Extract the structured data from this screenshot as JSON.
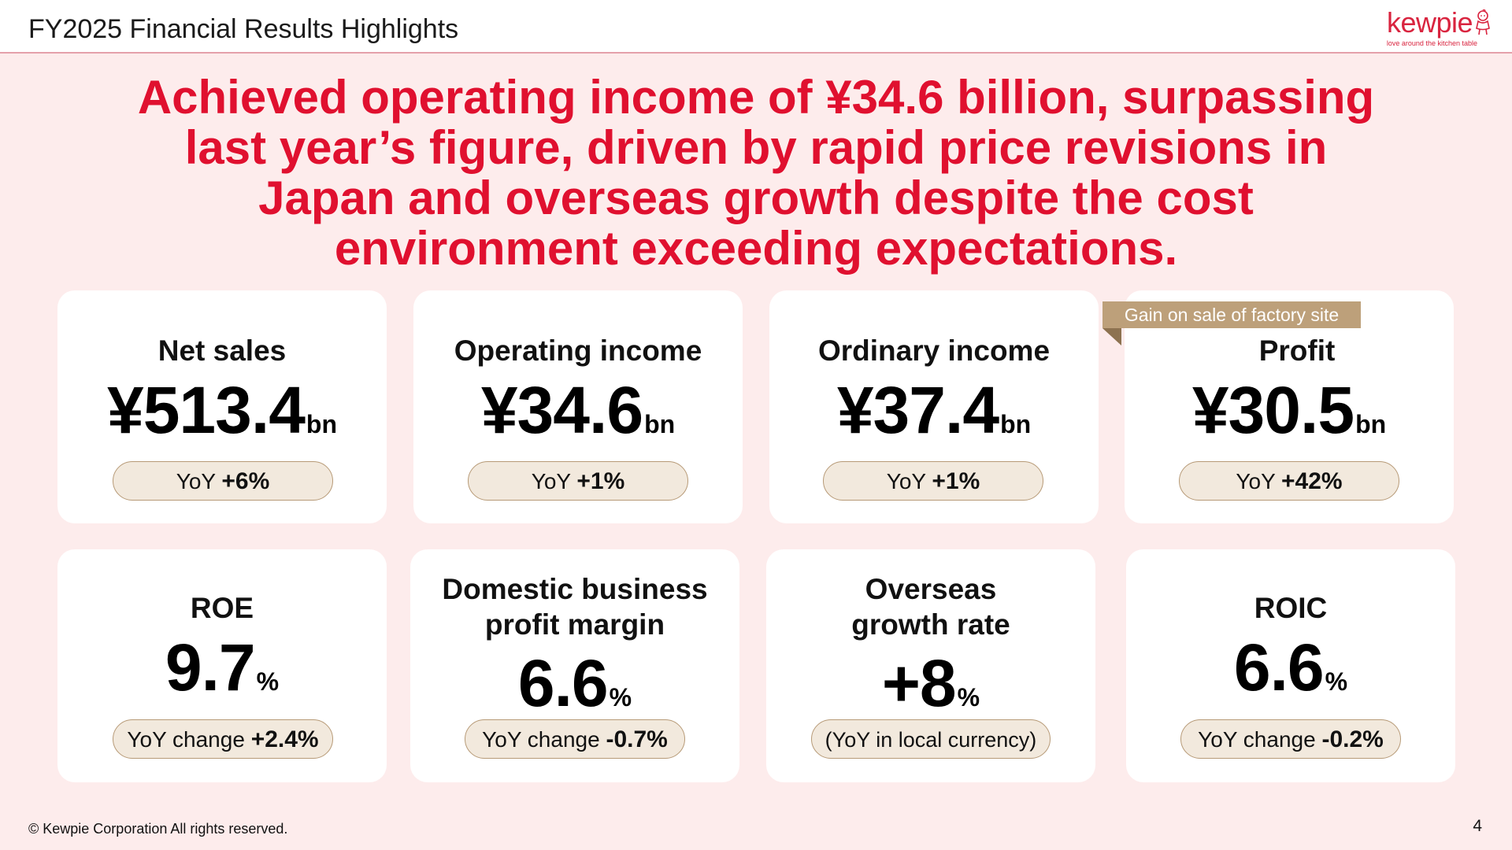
{
  "header": {
    "title": "FY2025 Financial Results Highlights",
    "logo": {
      "wordmark": "kewpie",
      "tagline": "love around the kitchen table"
    }
  },
  "headline": {
    "lines": [
      "Achieved operating income of ¥34.6 billion, surpassing",
      "last year’s figure, driven by rapid price revisions in",
      "Japan and overseas growth despite the cost",
      "environment exceeding expectations."
    ]
  },
  "top_cards": [
    {
      "title": "Net sales",
      "value": "¥513.4",
      "unit": "bn",
      "pill_label": "YoY",
      "pill_value": "+6%"
    },
    {
      "title": "Operating income",
      "value": "¥34.6",
      "unit": "bn",
      "pill_label": "YoY",
      "pill_value": "+1%"
    },
    {
      "title": "Ordinary income",
      "value": "¥37.4",
      "unit": "bn",
      "pill_label": "YoY",
      "pill_value": "+1%"
    },
    {
      "title": "Profit",
      "value": "¥30.5",
      "unit": "bn",
      "pill_label": "YoY",
      "pill_value": "+42%"
    }
  ],
  "profit_ribbon": "Gain on sale of factory site",
  "bottom_cards": [
    {
      "title_lines": [
        "ROE"
      ],
      "value": "9.7",
      "unit": "%",
      "pill_label": "YoY change",
      "pill_value": "+2.4%"
    },
    {
      "title_lines": [
        "Domestic business",
        "profit margin"
      ],
      "value": "6.6",
      "unit": "%",
      "pill_label": "YoY change",
      "pill_value": "-0.7%"
    },
    {
      "title_lines": [
        "Overseas",
        "growth rate"
      ],
      "value": "+8",
      "unit": "%",
      "pill_label": "(YoY in local currency)",
      "pill_value": ""
    },
    {
      "title_lines": [
        "ROIC"
      ],
      "value": "6.6",
      "unit": "%",
      "pill_label": "YoY change",
      "pill_value": "-0.2%"
    }
  ],
  "footer": {
    "copyright": "© Kewpie Corporation All rights reserved.",
    "page_number": "4"
  },
  "colors": {
    "accent_red": "#e0102f",
    "background_pink": "#fdecec",
    "pill_fill": "#f2e9dd",
    "ribbon": "#bda07a"
  }
}
